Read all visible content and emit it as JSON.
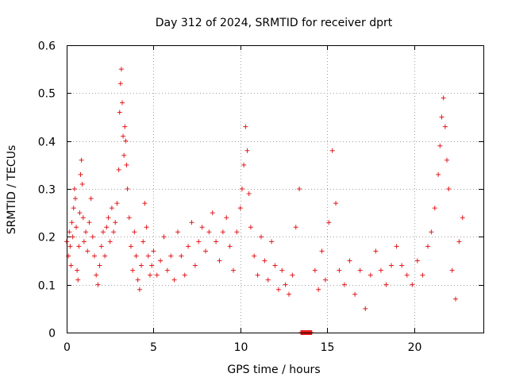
{
  "chart_data": {
    "type": "scatter",
    "title": "Day 312 of 2024, SRMTID for receiver dprt",
    "xlabel": "GPS time / hours",
    "ylabel": "SRMTID / TECUs",
    "xlim": [
      0,
      24
    ],
    "ylim": [
      0,
      0.6
    ],
    "xticks": [
      0,
      5,
      10,
      15,
      20
    ],
    "xtick_labels": [
      "0",
      "5",
      "10",
      "15",
      "20"
    ],
    "yticks": [
      0,
      0.1,
      0.2,
      0.3,
      0.4,
      0.5,
      0.6
    ],
    "ytick_labels": [
      "0",
      "0.1",
      "0.2",
      "0.3",
      "0.4",
      "0.5",
      "0.6"
    ],
    "grid": true,
    "marker": "plus",
    "color": "#e41a1c",
    "series": [
      {
        "name": "SRMTID",
        "points": [
          [
            0.0,
            0.19
          ],
          [
            0.1,
            0.16
          ],
          [
            0.15,
            0.21
          ],
          [
            0.2,
            0.18
          ],
          [
            0.25,
            0.14
          ],
          [
            0.3,
            0.23
          ],
          [
            0.35,
            0.2
          ],
          [
            0.4,
            0.26
          ],
          [
            0.45,
            0.3
          ],
          [
            0.5,
            0.28
          ],
          [
            0.55,
            0.22
          ],
          [
            0.6,
            0.13
          ],
          [
            0.65,
            0.11
          ],
          [
            0.7,
            0.18
          ],
          [
            0.75,
            0.25
          ],
          [
            0.8,
            0.33
          ],
          [
            0.85,
            0.36
          ],
          [
            0.9,
            0.31
          ],
          [
            0.95,
            0.24
          ],
          [
            1.0,
            0.19
          ],
          [
            1.1,
            0.21
          ],
          [
            1.2,
            0.17
          ],
          [
            1.3,
            0.23
          ],
          [
            1.4,
            0.28
          ],
          [
            1.5,
            0.2
          ],
          [
            1.6,
            0.16
          ],
          [
            1.7,
            0.12
          ],
          [
            1.8,
            0.1
          ],
          [
            1.9,
            0.14
          ],
          [
            2.0,
            0.18
          ],
          [
            2.1,
            0.21
          ],
          [
            2.2,
            0.16
          ],
          [
            2.3,
            0.22
          ],
          [
            2.4,
            0.24
          ],
          [
            2.5,
            0.19
          ],
          [
            2.6,
            0.26
          ],
          [
            2.7,
            0.21
          ],
          [
            2.8,
            0.23
          ],
          [
            2.9,
            0.27
          ],
          [
            3.0,
            0.34
          ],
          [
            3.05,
            0.46
          ],
          [
            3.1,
            0.52
          ],
          [
            3.15,
            0.55
          ],
          [
            3.2,
            0.48
          ],
          [
            3.25,
            0.41
          ],
          [
            3.3,
            0.37
          ],
          [
            3.35,
            0.43
          ],
          [
            3.4,
            0.4
          ],
          [
            3.45,
            0.35
          ],
          [
            3.5,
            0.3
          ],
          [
            3.6,
            0.24
          ],
          [
            3.7,
            0.18
          ],
          [
            3.8,
            0.13
          ],
          [
            3.9,
            0.21
          ],
          [
            4.0,
            0.16
          ],
          [
            4.1,
            0.11
          ],
          [
            4.2,
            0.09
          ],
          [
            4.3,
            0.14
          ],
          [
            4.4,
            0.19
          ],
          [
            4.5,
            0.27
          ],
          [
            4.6,
            0.22
          ],
          [
            4.7,
            0.16
          ],
          [
            4.8,
            0.12
          ],
          [
            4.9,
            0.14
          ],
          [
            5.0,
            0.17
          ],
          [
            5.2,
            0.12
          ],
          [
            5.4,
            0.15
          ],
          [
            5.6,
            0.2
          ],
          [
            5.8,
            0.13
          ],
          [
            6.0,
            0.16
          ],
          [
            6.2,
            0.11
          ],
          [
            6.4,
            0.21
          ],
          [
            6.6,
            0.16
          ],
          [
            6.8,
            0.12
          ],
          [
            7.0,
            0.18
          ],
          [
            7.2,
            0.23
          ],
          [
            7.4,
            0.14
          ],
          [
            7.6,
            0.19
          ],
          [
            7.8,
            0.22
          ],
          [
            8.0,
            0.17
          ],
          [
            8.2,
            0.21
          ],
          [
            8.4,
            0.25
          ],
          [
            8.6,
            0.19
          ],
          [
            8.8,
            0.15
          ],
          [
            9.0,
            0.21
          ],
          [
            9.2,
            0.24
          ],
          [
            9.4,
            0.18
          ],
          [
            9.6,
            0.13
          ],
          [
            9.8,
            0.21
          ],
          [
            10.0,
            0.26
          ],
          [
            10.1,
            0.3
          ],
          [
            10.2,
            0.35
          ],
          [
            10.3,
            0.43
          ],
          [
            10.4,
            0.38
          ],
          [
            10.5,
            0.29
          ],
          [
            10.6,
            0.22
          ],
          [
            10.8,
            0.16
          ],
          [
            11.0,
            0.12
          ],
          [
            11.2,
            0.2
          ],
          [
            11.4,
            0.15
          ],
          [
            11.6,
            0.11
          ],
          [
            11.8,
            0.19
          ],
          [
            12.0,
            0.14
          ],
          [
            12.2,
            0.09
          ],
          [
            12.4,
            0.13
          ],
          [
            12.6,
            0.1
          ],
          [
            12.8,
            0.08
          ],
          [
            13.0,
            0.12
          ],
          [
            13.2,
            0.22
          ],
          [
            13.4,
            0.3
          ],
          [
            13.5,
            0.0
          ],
          [
            13.8,
            0.0
          ],
          [
            14.0,
            0.0
          ],
          [
            14.1,
            0.0
          ],
          [
            14.3,
            0.13
          ],
          [
            14.5,
            0.09
          ],
          [
            14.7,
            0.17
          ],
          [
            14.9,
            0.11
          ],
          [
            15.1,
            0.23
          ],
          [
            15.3,
            0.38
          ],
          [
            15.5,
            0.27
          ],
          [
            15.7,
            0.13
          ],
          [
            16.0,
            0.1
          ],
          [
            16.3,
            0.15
          ],
          [
            16.6,
            0.08
          ],
          [
            16.9,
            0.13
          ],
          [
            17.2,
            0.05
          ],
          [
            17.5,
            0.12
          ],
          [
            17.8,
            0.17
          ],
          [
            18.1,
            0.13
          ],
          [
            18.4,
            0.1
          ],
          [
            18.7,
            0.14
          ],
          [
            19.0,
            0.18
          ],
          [
            19.3,
            0.14
          ],
          [
            19.6,
            0.12
          ],
          [
            19.9,
            0.1
          ],
          [
            20.2,
            0.15
          ],
          [
            20.5,
            0.12
          ],
          [
            20.8,
            0.18
          ],
          [
            21.0,
            0.21
          ],
          [
            21.2,
            0.26
          ],
          [
            21.4,
            0.33
          ],
          [
            21.5,
            0.39
          ],
          [
            21.6,
            0.45
          ],
          [
            21.7,
            0.49
          ],
          [
            21.8,
            0.43
          ],
          [
            21.9,
            0.36
          ],
          [
            22.0,
            0.3
          ],
          [
            22.2,
            0.13
          ],
          [
            22.4,
            0.07
          ],
          [
            22.6,
            0.19
          ],
          [
            22.8,
            0.24
          ]
        ]
      }
    ],
    "gap_points": [
      [
        13.6,
        0.0
      ],
      [
        13.65,
        0.0
      ],
      [
        13.9,
        0.0
      ],
      [
        14.0,
        0.0
      ]
    ]
  }
}
